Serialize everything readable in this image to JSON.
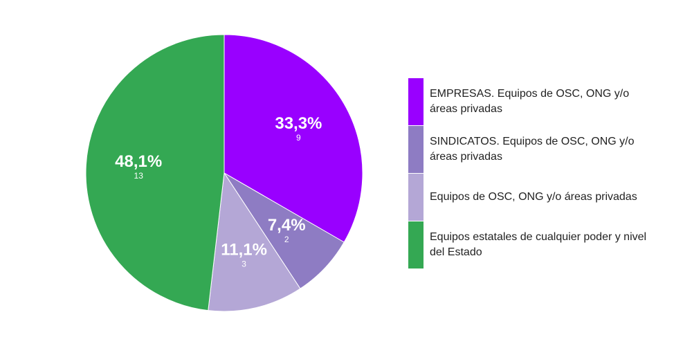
{
  "chart_data": {
    "type": "pie",
    "title": "",
    "start_angle_deg": 0,
    "direction": "clockwise",
    "legend_position": "right",
    "slices": [
      {
        "label": "EMPRESAS. Equipos de OSC, ONG y/o áreas privadas",
        "percent_label": "33,3%",
        "count_label": "9",
        "value": 9,
        "color": "#9900ff"
      },
      {
        "label": "SINDICATOS. Equipos de OSC, ONG y/o áreas privadas",
        "percent_label": "7,4%",
        "count_label": "2",
        "value": 2,
        "color": "#8e7cc3"
      },
      {
        "label": "Equipos de OSC, ONG y/o áreas privadas",
        "percent_label": "11,1%",
        "count_label": "3",
        "value": 3,
        "color": "#b4a7d6"
      },
      {
        "label": "Equipos estatales de cualquier poder y nivel del Estado",
        "percent_label": "48,1%",
        "count_label": "13",
        "value": 13,
        "color": "#34a853"
      }
    ]
  }
}
